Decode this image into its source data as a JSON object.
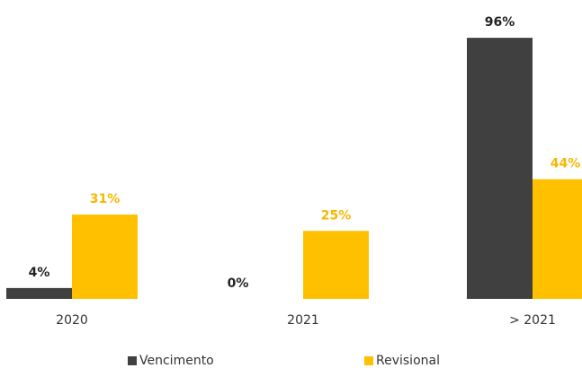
{
  "chart_data": {
    "type": "bar",
    "categories": [
      "2020",
      "2021",
      "> 2021"
    ],
    "series": [
      {
        "name": "Vencimento",
        "color": "#404040",
        "values": [
          4,
          0,
          96
        ],
        "value_labels": [
          "4%",
          "0%",
          "96%"
        ]
      },
      {
        "name": "Revisional",
        "color": "#ffc000",
        "values": [
          31,
          25,
          44
        ],
        "value_labels": [
          "31%",
          "25%",
          "44%"
        ]
      }
    ]
  }
}
